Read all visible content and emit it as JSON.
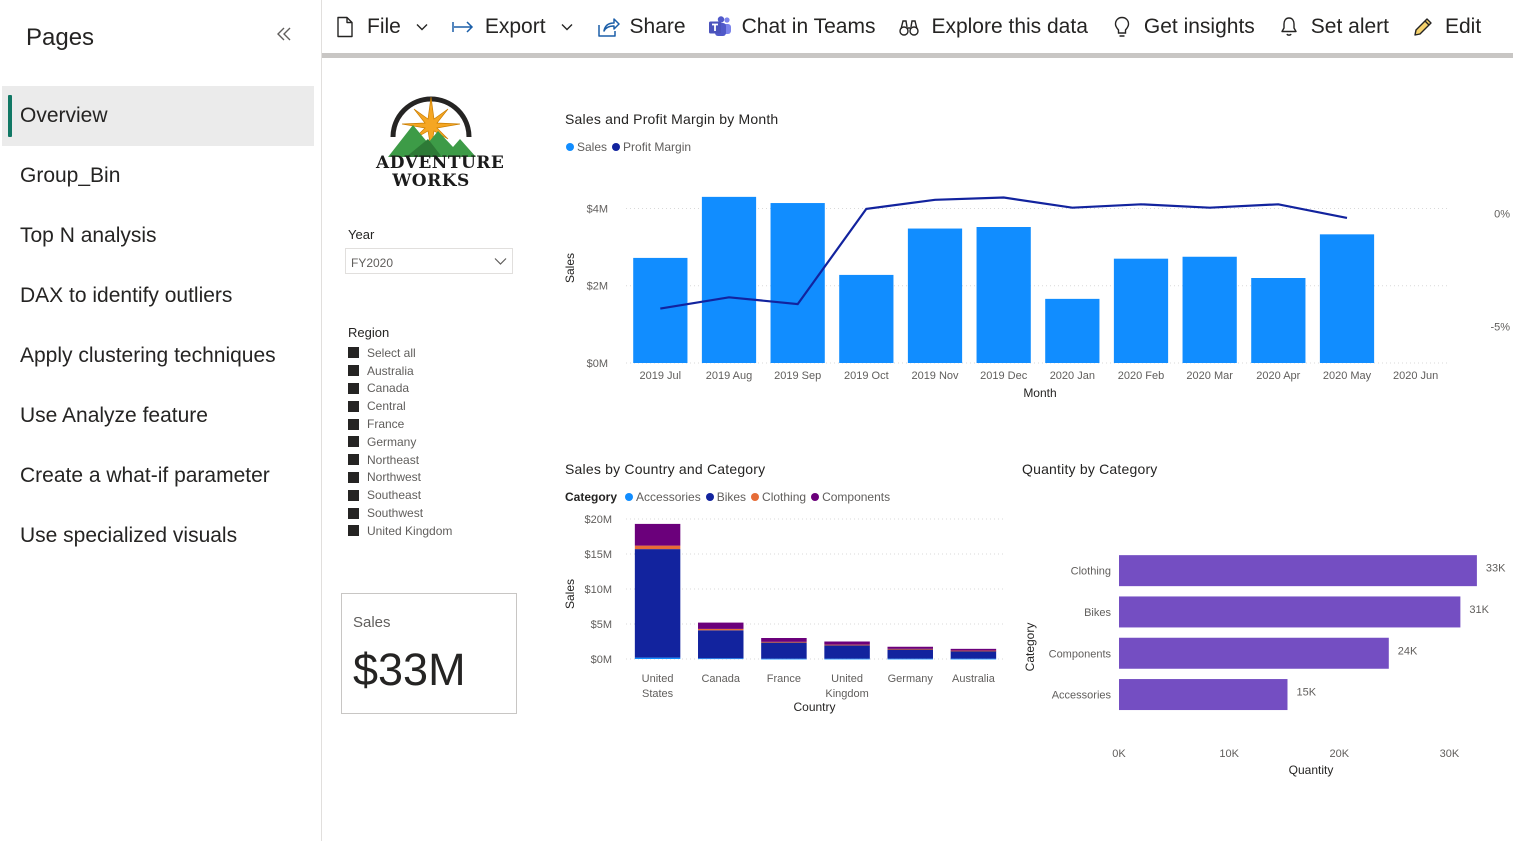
{
  "sidebar": {
    "title": "Pages",
    "collapse_icon": "double-chevron-left-icon",
    "items": [
      {
        "label": "Overview",
        "active": true
      },
      {
        "label": "Group_Bin"
      },
      {
        "label": "Top N analysis"
      },
      {
        "label": "DAX to identify outliers"
      },
      {
        "label": "Apply clustering techniques"
      },
      {
        "label": "Use Analyze feature"
      },
      {
        "label": "Create a what-if parameter"
      },
      {
        "label": "Use specialized visuals"
      }
    ]
  },
  "toolbar": {
    "file": {
      "label": "File",
      "icon": "document-icon"
    },
    "export": {
      "label": "Export",
      "icon": "export-arrow-icon"
    },
    "share": {
      "label": "Share",
      "icon": "share-icon"
    },
    "teams": {
      "label": "Chat in Teams",
      "icon": "teams-icon"
    },
    "explore": {
      "label": "Explore this data",
      "icon": "binoculars-icon"
    },
    "insights": {
      "label": "Get insights",
      "icon": "lightbulb-icon"
    },
    "alert": {
      "label": "Set alert",
      "icon": "bell-icon"
    },
    "edit": {
      "label": "Edit",
      "icon": "pencil-icon"
    }
  },
  "report": {
    "logo": {
      "line1": "ADVENTURE",
      "line2": "WORKS"
    },
    "year_slicer": {
      "label": "Year",
      "value": "FY2020"
    },
    "region_slicer": {
      "label": "Region",
      "items": [
        "Select all",
        "Australia",
        "Canada",
        "Central",
        "France",
        "Germany",
        "Northeast",
        "Northwest",
        "Southeast",
        "Southwest",
        "United Kingdom"
      ]
    },
    "sales_card": {
      "label": "Sales",
      "value": "$33M"
    }
  },
  "colors": {
    "sales": "#118dff",
    "profit_margin": "#12239e",
    "accessories": "#118dff",
    "bikes": "#12239e",
    "clothing": "#e66c37",
    "components": "#6b007b",
    "quantity": "#744ec2",
    "accent": "#117865"
  },
  "chart_data": [
    {
      "id": "sales-profit",
      "type": "bar+line",
      "title": "Sales and Profit Margin by Month",
      "xlabel": "Month",
      "ylabel": "Sales",
      "y2label": "Profit Margin",
      "legend": [
        {
          "name": "Sales"
        },
        {
          "name": "Profit Margin"
        }
      ],
      "categories": [
        "2019 Jul",
        "2019 Aug",
        "2019 Sep",
        "2019 Oct",
        "2019 Nov",
        "2019 Dec",
        "2020 Jan",
        "2020 Feb",
        "2020 Mar",
        "2020 Apr",
        "2020 May",
        "2020 Jun"
      ],
      "y_ticks": [
        "$0M",
        "$2M",
        "$4M"
      ],
      "y2_ticks": [
        "-5%",
        "0%"
      ],
      "ylim": [
        0,
        4.4
      ],
      "y2lim": [
        -6.6,
        0.9
      ],
      "series": [
        {
          "name": "Sales",
          "kind": "bar",
          "values": [
            2.72,
            4.3,
            4.14,
            2.28,
            3.48,
            3.52,
            1.66,
            2.7,
            2.75,
            2.2,
            3.33,
            null
          ]
        },
        {
          "name": "Profit Margin",
          "kind": "line",
          "values": [
            -4.2,
            -3.7,
            -4.0,
            0.2,
            0.6,
            0.7,
            0.25,
            0.4,
            0.25,
            0.4,
            -0.2,
            null
          ]
        }
      ]
    },
    {
      "id": "country-category",
      "type": "stacked-bar",
      "title": "Sales by Country and Category",
      "legend_title": "Category",
      "xlabel": "Country",
      "ylabel": "Sales",
      "categories": [
        "United States",
        "Canada",
        "France",
        "United Kingdom",
        "Germany",
        "Australia"
      ],
      "category_lines": [
        [
          "United",
          "States"
        ],
        [
          "Canada"
        ],
        [
          "France"
        ],
        [
          "United",
          "Kingdom"
        ],
        [
          "Germany"
        ],
        [
          "Australia"
        ]
      ],
      "y_ticks": [
        "$0M",
        "$5M",
        "$10M",
        "$15M",
        "$20M"
      ],
      "ylim": [
        0,
        20
      ],
      "series": [
        {
          "name": "Accessories",
          "values": [
            0.2,
            0.1,
            0.05,
            0.05,
            0.05,
            0.05
          ]
        },
        {
          "name": "Bikes",
          "values": [
            15.5,
            4.0,
            2.3,
            1.9,
            1.35,
            1.1
          ]
        },
        {
          "name": "Clothing",
          "values": [
            0.5,
            0.2,
            0.1,
            0.1,
            0.05,
            0.05
          ]
        },
        {
          "name": "Components",
          "values": [
            3.1,
            0.9,
            0.55,
            0.45,
            0.3,
            0.25
          ]
        }
      ]
    },
    {
      "id": "quantity-category",
      "type": "bar-horizontal",
      "title": "Quantity by Category",
      "xlabel": "Quantity",
      "ylabel": "Category",
      "categories": [
        "Clothing",
        "Bikes",
        "Components",
        "Accessories"
      ],
      "values": [
        32.5,
        31,
        24.5,
        15.3
      ],
      "value_labels": [
        "33K",
        "31K",
        "24K",
        "15K"
      ],
      "x_ticks": [
        "0K",
        "10K",
        "20K",
        "30K"
      ],
      "xlim": [
        0,
        32.6
      ]
    }
  ]
}
